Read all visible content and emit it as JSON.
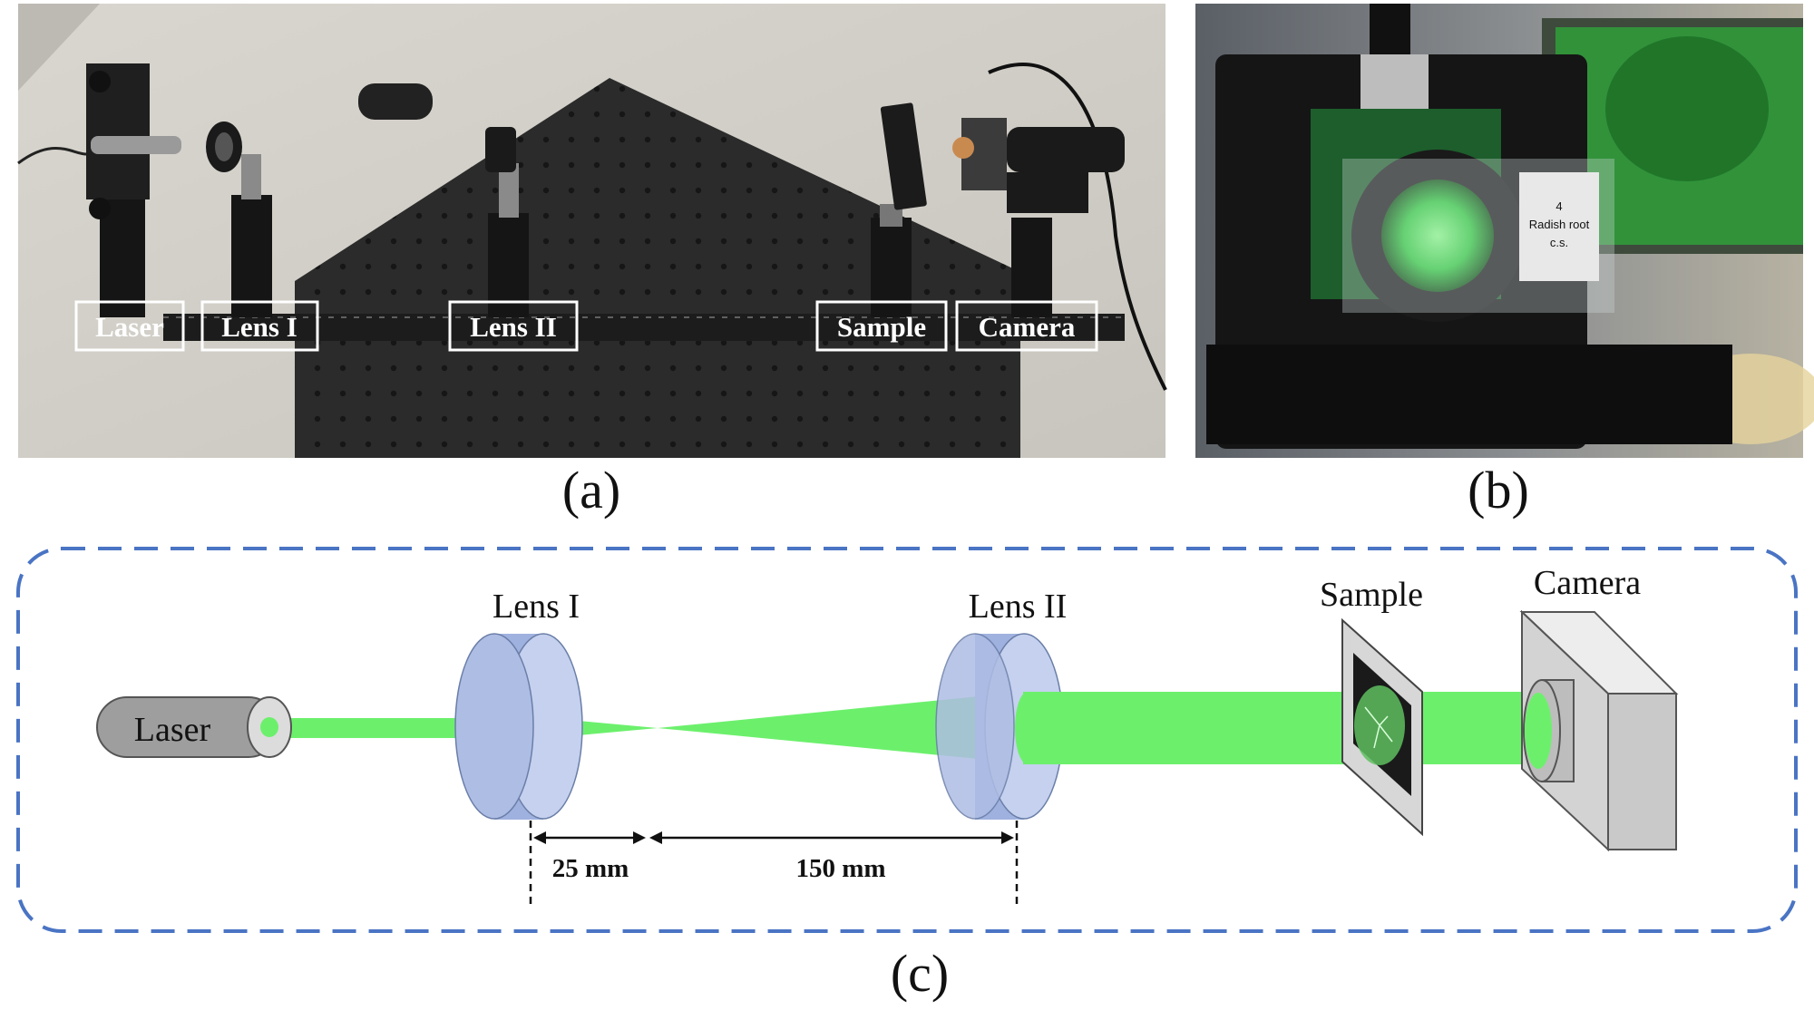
{
  "panel_a": {
    "labels": [
      "Laser",
      "Lens I",
      "Lens II",
      "Sample",
      "Camera"
    ],
    "caption": "(a)"
  },
  "panel_b": {
    "slide_label": [
      "4",
      "Radish root",
      "c.s."
    ],
    "caption": "(b)"
  },
  "panel_c": {
    "components": {
      "laser": "Laser",
      "lens1": "Lens I",
      "lens2": "Lens II",
      "sample": "Sample",
      "camera": "Camera"
    },
    "dimensions": {
      "d1": "25 mm",
      "d2": "150 mm"
    },
    "caption": "(c)"
  },
  "colors": {
    "beam": "#6cf06c",
    "lens": "#9fb1de",
    "border": "#4a74c4",
    "laser_body": "#9e9e9e",
    "camera_body": "#d3d3d3"
  }
}
